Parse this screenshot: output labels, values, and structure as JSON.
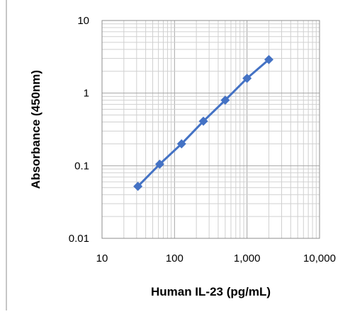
{
  "chart_data": {
    "type": "line",
    "title": "",
    "xlabel": "Human IL-23 (pg/mL)",
    "ylabel": "Absorbance (450nm)",
    "x_scale": "log",
    "y_scale": "log",
    "xlim": [
      10,
      10000
    ],
    "ylim": [
      0.01,
      10
    ],
    "x_ticks": [
      10,
      100,
      1000,
      10000
    ],
    "x_tick_labels": [
      "10",
      "100",
      "1,000",
      "10,000"
    ],
    "y_ticks": [
      0.01,
      0.1,
      1,
      10
    ],
    "y_tick_labels": [
      "0.01",
      "0.1",
      "1",
      "10"
    ],
    "grid": true,
    "legend": "none",
    "series": [
      {
        "x": [
          31.25,
          62.5,
          125,
          250,
          500,
          1000,
          2000
        ],
        "y": [
          0.052,
          0.105,
          0.2,
          0.41,
          0.8,
          1.6,
          2.9
        ],
        "color": "#4472C4",
        "marker": "diamond"
      }
    ]
  }
}
